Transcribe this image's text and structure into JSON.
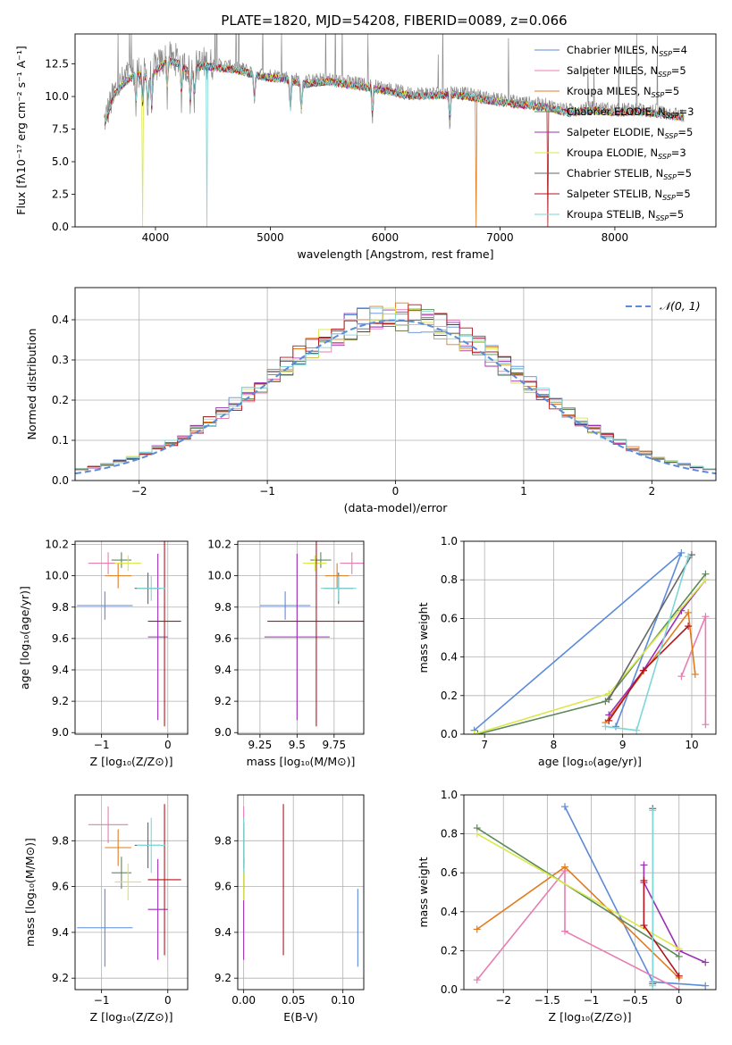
{
  "title": "PLATE=1820, MJD=54208, FIBERID=0089, z=0.066",
  "colors": {
    "chabrier_miles": "#5b8bd9",
    "salpeter_miles": "#e87db2",
    "kroupa_miles": "#e07c1f",
    "chabrier_elodie": "#5e8a5a",
    "salpeter_elodie": "#9b2fb5",
    "kroupa_elodie": "#d9e84a",
    "chabrier_stelib": "#666666",
    "salpeter_stelib": "#b4141c",
    "kroupa_stelib": "#7fd6d6",
    "gaussian": "#5b8bd9",
    "grid": "#b0b0b0"
  },
  "chart_data": [
    {
      "id": "spectrum",
      "type": "line",
      "xlabel": "wavelength [Angstrom, rest frame]",
      "ylabel": "Flux [fλ10⁻¹⁷ erg cm⁻² s⁻¹ A⁻¹]",
      "xlim": [
        3300,
        8880
      ],
      "ylim": [
        0,
        14.8
      ],
      "xticks": [
        4000,
        5000,
        6000,
        7000,
        8000
      ],
      "yticks": [
        0.0,
        2.5,
        5.0,
        7.5,
        10.0,
        12.5
      ],
      "grid": false,
      "legend_position": "upper right",
      "legend": [
        {
          "label": "Chabrier MILES, N",
          "sub": "SSP",
          "tail": "=4",
          "color_key": "chabrier_miles"
        },
        {
          "label": "Salpeter MILES, N",
          "sub": "SSP",
          "tail": "=5",
          "color_key": "salpeter_miles"
        },
        {
          "label": "Kroupa MILES, N",
          "sub": "SSP",
          "tail": "=5",
          "color_key": "kroupa_miles"
        },
        {
          "label": "Chabrier ELODIE, N",
          "sub": "SSP",
          "tail": "=3",
          "color_key": "chabrier_elodie"
        },
        {
          "label": "Salpeter ELODIE, N",
          "sub": "SSP",
          "tail": "=5",
          "color_key": "salpeter_elodie"
        },
        {
          "label": "Kroupa ELODIE, N",
          "sub": "SSP",
          "tail": "=3",
          "color_key": "kroupa_elodie"
        },
        {
          "label": "Chabrier STELIB, N",
          "sub": "SSP",
          "tail": "=5",
          "color_key": "chabrier_stelib"
        },
        {
          "label": "Salpeter STELIB, N",
          "sub": "SSP",
          "tail": "=5",
          "color_key": "salpeter_stelib"
        },
        {
          "label": "Kroupa STELIB, N",
          "sub": "SSP",
          "tail": "=5",
          "color_key": "kroupa_stelib"
        }
      ],
      "observed_continuum": [
        [
          3550,
          8.0
        ],
        [
          3650,
          10.5
        ],
        [
          3750,
          11.5
        ],
        [
          3850,
          12.0
        ],
        [
          3950,
          11.5
        ],
        [
          4000,
          12.2
        ],
        [
          4100,
          13.0
        ],
        [
          4200,
          12.8
        ],
        [
          4300,
          12.0
        ],
        [
          4400,
          12.6
        ],
        [
          4500,
          12.5
        ],
        [
          4700,
          12.3
        ],
        [
          4900,
          11.8
        ],
        [
          5100,
          11.6
        ],
        [
          5300,
          11.2
        ],
        [
          5500,
          11.4
        ],
        [
          5800,
          11.0
        ],
        [
          6000,
          10.7
        ],
        [
          6200,
          10.3
        ],
        [
          6400,
          10.3
        ],
        [
          6600,
          10.4
        ],
        [
          6800,
          10.1
        ],
        [
          7000,
          9.8
        ],
        [
          7200,
          9.6
        ],
        [
          7400,
          9.4
        ],
        [
          7600,
          9.0
        ],
        [
          7800,
          9.2
        ],
        [
          8000,
          9.0
        ],
        [
          8200,
          9.1
        ],
        [
          8400,
          8.9
        ],
        [
          8600,
          8.6
        ]
      ],
      "model_dips": [
        {
          "series": "kroupa_elodie",
          "x": 3890,
          "y": 0.0
        },
        {
          "series": "kroupa_stelib",
          "x": 4445,
          "y": 0.0
        },
        {
          "series": "kroupa_miles",
          "x": 6790,
          "y": 0.0
        },
        {
          "series": "salpeter_stelib",
          "x": 7415,
          "y": 0.0
        }
      ]
    },
    {
      "id": "residual-histogram",
      "type": "histogram",
      "xlabel": "(data-model)/error",
      "ylabel": "Normed distribution",
      "xlim": [
        -2.5,
        2.5
      ],
      "ylim": [
        0,
        0.48
      ],
      "xticks": [
        -2,
        -1,
        0,
        1,
        2
      ],
      "yticks": [
        0.0,
        0.1,
        0.2,
        0.3,
        0.4
      ],
      "grid": true,
      "bin_width": 0.1,
      "legend_position": "upper right",
      "gaussian_label": "𝒩(0, 1)"
    },
    {
      "id": "age-vs-metallicity",
      "type": "errorbar",
      "xlabel": "Z [log₁₀(Z/Z⊙)]",
      "ylabel": "age  [log₁₀(age/yr)]",
      "xlim": [
        -1.4,
        0.3
      ],
      "ylim": [
        8.99,
        10.22
      ],
      "xticks": [
        -1,
        0
      ],
      "yticks": [
        9.0,
        9.2,
        9.4,
        9.6,
        9.8,
        10.0,
        10.2
      ],
      "grid": true
    },
    {
      "id": "age-vs-mass",
      "type": "errorbar",
      "xlabel": "mass [log₁₀(M/M⊙)]",
      "ylabel": "",
      "xlim": [
        9.1,
        9.95
      ],
      "ylim": [
        8.99,
        10.22
      ],
      "xticks": [
        9.25,
        9.5,
        9.75
      ],
      "yticks": [
        9.0,
        9.2,
        9.4,
        9.6,
        9.8,
        10.0,
        10.2
      ],
      "grid": true
    },
    {
      "id": "mass-weight-vs-age",
      "type": "line",
      "xlabel": "age  [log₁₀(age/yr)]",
      "ylabel": "mass weight",
      "xlim": [
        6.7,
        10.35
      ],
      "ylim": [
        0,
        1.0
      ],
      "xticks": [
        7,
        8,
        9,
        10
      ],
      "yticks": [
        0.0,
        0.2,
        0.4,
        0.6,
        0.8,
        1.0
      ],
      "grid": true
    },
    {
      "id": "mass-vs-metallicity",
      "type": "errorbar",
      "xlabel": "Z [log₁₀(Z/Z⊙)]",
      "ylabel": "mass [log₁₀(M/M⊙)]",
      "xlim": [
        -1.4,
        0.3
      ],
      "ylim": [
        9.15,
        10.0
      ],
      "xticks": [
        -1,
        0
      ],
      "yticks": [
        9.2,
        9.4,
        9.6,
        9.8
      ],
      "grid": true
    },
    {
      "id": "mass-vs-extinction",
      "type": "errorbar",
      "xlabel": "E(B-V)",
      "ylabel": "",
      "xlim": [
        -0.006,
        0.121
      ],
      "ylim": [
        9.15,
        10.0
      ],
      "xticks": [
        0.0,
        0.05,
        0.1
      ],
      "xticklabels": [
        "0.00",
        "0.05",
        "0.10"
      ],
      "yticks": [
        9.2,
        9.4,
        9.6,
        9.8
      ],
      "grid": true
    },
    {
      "id": "mass-weight-vs-metallicity",
      "type": "line",
      "xlabel": "Z [log₁₀(Z/Z⊙)]",
      "ylabel": "mass weight",
      "xlim": [
        -2.45,
        0.42
      ],
      "ylim": [
        0,
        1.0
      ],
      "xticks": [
        -2.0,
        -1.5,
        -1.0,
        -0.5,
        0.0
      ],
      "yticks": [
        0.0,
        0.2,
        0.4,
        0.6,
        0.8,
        1.0
      ],
      "grid": true
    }
  ],
  "fits": [
    {
      "key": "chabrier_miles",
      "z": -0.95,
      "zerr": 0.42,
      "age": 9.81,
      "ageerr": 0.09,
      "mass": 9.42,
      "masserr": 0.17,
      "ebv": 0.115,
      "ebverr": 0.0,
      "ages": [
        8.9,
        9.85,
        6.85
      ],
      "weights_age": [
        0.04,
        0.94,
        0.02
      ],
      "zs": [
        -1.3,
        -0.3,
        0.3
      ],
      "weights_z": [
        0.94,
        0.04,
        0.02
      ]
    },
    {
      "key": "salpeter_miles",
      "z": -0.9,
      "zerr": 0.3,
      "age": 10.08,
      "ageerr": 0.07,
      "mass": 9.87,
      "masserr": 0.08,
      "ebv": 0.0,
      "ebverr": 0.0,
      "ages": [
        9.85,
        10.2,
        10.2
      ],
      "weights_age": [
        0.3,
        0.61,
        0.05
      ],
      "zs": [
        -2.3,
        -1.3,
        -1.3,
        0.0
      ],
      "weights_z": [
        0.05,
        0.61,
        0.3,
        0.0
      ]
    },
    {
      "key": "kroupa_miles",
      "z": -0.75,
      "zerr": 0.2,
      "age": 10.0,
      "ageerr": 0.08,
      "mass": 9.77,
      "masserr": 0.08,
      "ebv": 0.0,
      "ebverr": 0.0,
      "ages": [
        8.75,
        9.95,
        10.05
      ],
      "weights_age": [
        0.06,
        0.63,
        0.31
      ],
      "zs": [
        -2.3,
        -1.3,
        0.0
      ],
      "weights_z": [
        0.31,
        0.63,
        0.06
      ]
    },
    {
      "key": "chabrier_elodie",
      "z": -0.7,
      "zerr": 0.15,
      "age": 10.1,
      "ageerr": 0.05,
      "mass": 9.66,
      "masserr": 0.07,
      "ebv": 0.0,
      "ebverr": 0.0,
      "ages": [
        6.9,
        8.75,
        10.2
      ],
      "weights_age": [
        0.0,
        0.17,
        0.83
      ],
      "zs": [
        -2.3,
        0.0
      ],
      "weights_z": [
        0.83,
        0.17
      ]
    },
    {
      "key": "salpeter_elodie",
      "z": -0.15,
      "zerr": 0.15,
      "age": 9.61,
      "ageerr": 0.53,
      "mass": 9.5,
      "masserr": 0.22,
      "ebv": 0.0,
      "ebverr": 0.0,
      "ages": [
        8.8,
        9.3,
        9.85,
        10.2
      ],
      "weights_age": [
        0.1,
        0.33,
        0.64,
        0.8
      ],
      "zs": [
        -0.4,
        -0.4,
        0.0,
        0.3
      ],
      "weights_z": [
        0.64,
        0.55,
        0.2,
        0.14
      ]
    },
    {
      "key": "kroupa_elodie",
      "z": -0.6,
      "zerr": 0.2,
      "age": 10.08,
      "ageerr": 0.05,
      "mass": 9.62,
      "masserr": 0.08,
      "ebv": 0.0,
      "ebverr": 0.0,
      "ages": [
        6.85,
        8.8,
        10.2
      ],
      "weights_age": [
        0.0,
        0.21,
        0.8
      ],
      "zs": [
        -2.3,
        0.0
      ],
      "weights_z": [
        0.8,
        0.21
      ]
    },
    {
      "key": "chabrier_stelib",
      "z": -0.3,
      "zerr": 0.2,
      "age": 9.92,
      "ageerr": 0.1,
      "mass": 9.78,
      "masserr": 0.1,
      "ebv": 0.0,
      "ebverr": 0.0,
      "ages": [
        8.8,
        10.0
      ],
      "weights_age": [
        0.18,
        0.93
      ],
      "zs": [
        -0.3,
        -0.3
      ],
      "weights_z": [
        0.93,
        0.03
      ]
    },
    {
      "key": "salpeter_stelib",
      "z": -0.05,
      "zerr": 0.25,
      "age": 9.71,
      "ageerr": 0.67,
      "mass": 9.63,
      "masserr": 0.33,
      "ebv": 0.04,
      "ebverr": 0.0,
      "ages": [
        8.8,
        9.3,
        9.95
      ],
      "weights_age": [
        0.07,
        0.33,
        0.56
      ],
      "zs": [
        -0.4,
        -0.4,
        0.0
      ],
      "weights_z": [
        0.56,
        0.33,
        0.07
      ]
    },
    {
      "key": "kroupa_stelib",
      "z": -0.25,
      "zerr": 0.22,
      "age": 9.92,
      "ageerr": 0.08,
      "mass": 9.78,
      "masserr": 0.12,
      "ebv": 0.0,
      "ebverr": 0.0,
      "ages": [
        8.75,
        9.2,
        9.95
      ],
      "weights_age": [
        0.04,
        0.02,
        0.92
      ],
      "zs": [
        -0.3,
        -0.3
      ],
      "weights_z": [
        0.92,
        0.02
      ]
    }
  ]
}
